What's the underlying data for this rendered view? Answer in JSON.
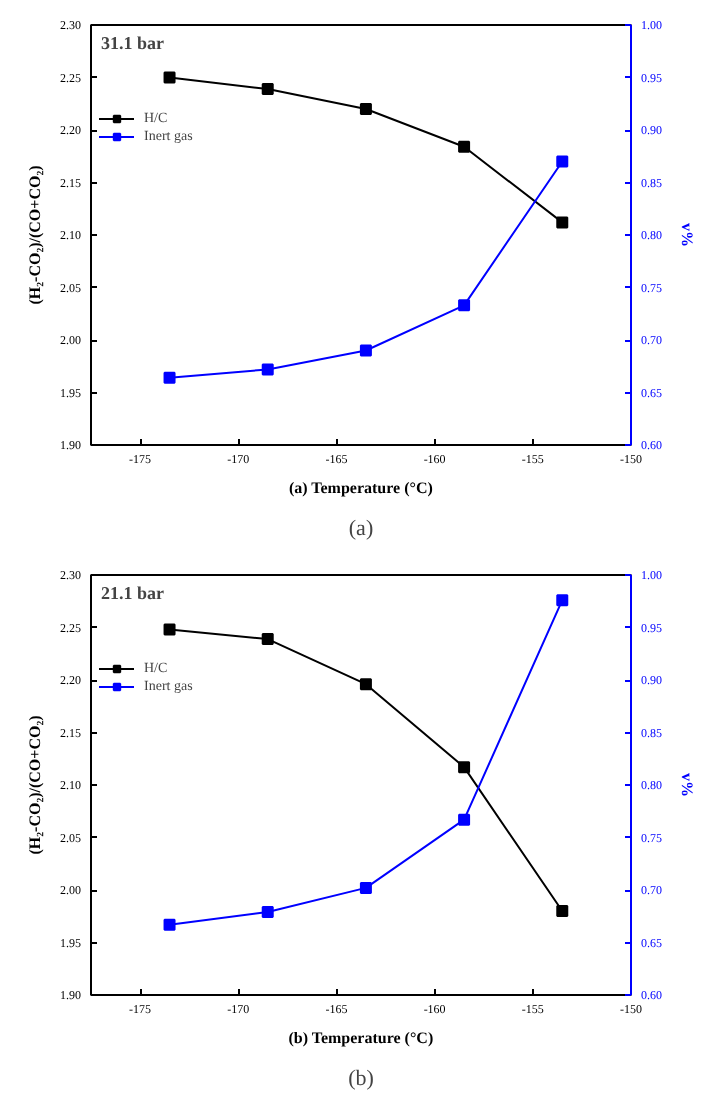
{
  "chart_data": [
    {
      "type": "line",
      "annotations": [
        "31.1 bar",
        "(a)"
      ],
      "xlabel": "(a) Temperature (°C)",
      "ylabel": "(H₂-CO₂)/(CO+CO₂)",
      "y2label": "v%",
      "xlim": [
        -177.5,
        -150
      ],
      "xticks": [
        -175,
        -170,
        -165,
        -160,
        -155,
        -150
      ],
      "ylim": [
        1.9,
        2.3
      ],
      "yticks": [
        {
          "value": 1.9,
          "label": "1.90"
        },
        1.95,
        {
          "value": 2.0,
          "label": "2.00"
        },
        2.05,
        {
          "value": 2.1,
          "label": "2.10"
        },
        2.15,
        {
          "value": 2.2,
          "label": "2.20"
        },
        2.25,
        {
          "value": 2.3,
          "label": "2.30"
        }
      ],
      "y2lim": [
        0.6,
        1.0
      ],
      "y2ticks": [
        {
          "value": 0.6,
          "label": "0.60"
        },
        0.65,
        {
          "value": 0.7,
          "label": "0.70"
        },
        0.75,
        {
          "value": 0.8,
          "label": "0.80"
        },
        0.85,
        {
          "value": 0.9,
          "label": "0.90"
        },
        0.95,
        {
          "value": 1.0,
          "label": "1.00"
        }
      ],
      "x": [
        -173.5,
        -168.5,
        -163.5,
        -158.5,
        -153.5
      ],
      "marker": "square",
      "legend": "left",
      "series": [
        {
          "name": "H/C",
          "color": "#000000",
          "values": [
            2.25,
            2.239,
            2.22,
            2.184,
            2.112
          ]
        },
        {
          "name": "Inert gas",
          "color": "#0000ff",
          "axis": "y2",
          "values": [
            0.664,
            0.672,
            0.69,
            0.733,
            0.87
          ]
        }
      ]
    },
    {
      "type": "line",
      "annotations": [
        "21.1 bar",
        "(b)"
      ],
      "xlabel": "(b) Temperature (°C)",
      "ylabel": "(H₂-CO₂)/(CO+CO₂)",
      "y2label": "v%",
      "xlim": [
        -177.5,
        -150
      ],
      "xticks": [
        -175,
        -170,
        -165,
        -160,
        -155,
        -150
      ],
      "ylim": [
        1.9,
        2.3
      ],
      "yticks": [
        {
          "value": 1.9,
          "label": "1.90"
        },
        1.95,
        {
          "value": 2.0,
          "label": "2.00"
        },
        2.05,
        {
          "value": 2.1,
          "label": "2.10"
        },
        2.15,
        {
          "value": 2.2,
          "label": "2.20"
        },
        2.25,
        {
          "value": 2.3,
          "label": "2.30"
        }
      ],
      "y2lim": [
        0.6,
        1.0
      ],
      "y2ticks": [
        {
          "value": 0.6,
          "label": "0.60"
        },
        0.65,
        {
          "value": 0.7,
          "label": "0.70"
        },
        0.75,
        {
          "value": 0.8,
          "label": "0.80"
        },
        0.85,
        {
          "value": 0.9,
          "label": "0.90"
        },
        0.95,
        {
          "value": 1.0,
          "label": "1.00"
        }
      ],
      "x": [
        -173.5,
        -168.5,
        -163.5,
        -158.5,
        -153.5
      ],
      "marker": "square",
      "legend": "left",
      "series": [
        {
          "name": "H/C",
          "color": "#000000",
          "values": [
            2.248,
            2.239,
            2.196,
            2.117,
            1.98
          ]
        },
        {
          "name": "Inert gas",
          "color": "#0000ff",
          "axis": "y2",
          "values": [
            0.667,
            0.679,
            0.702,
            0.767,
            0.976
          ]
        }
      ]
    }
  ]
}
